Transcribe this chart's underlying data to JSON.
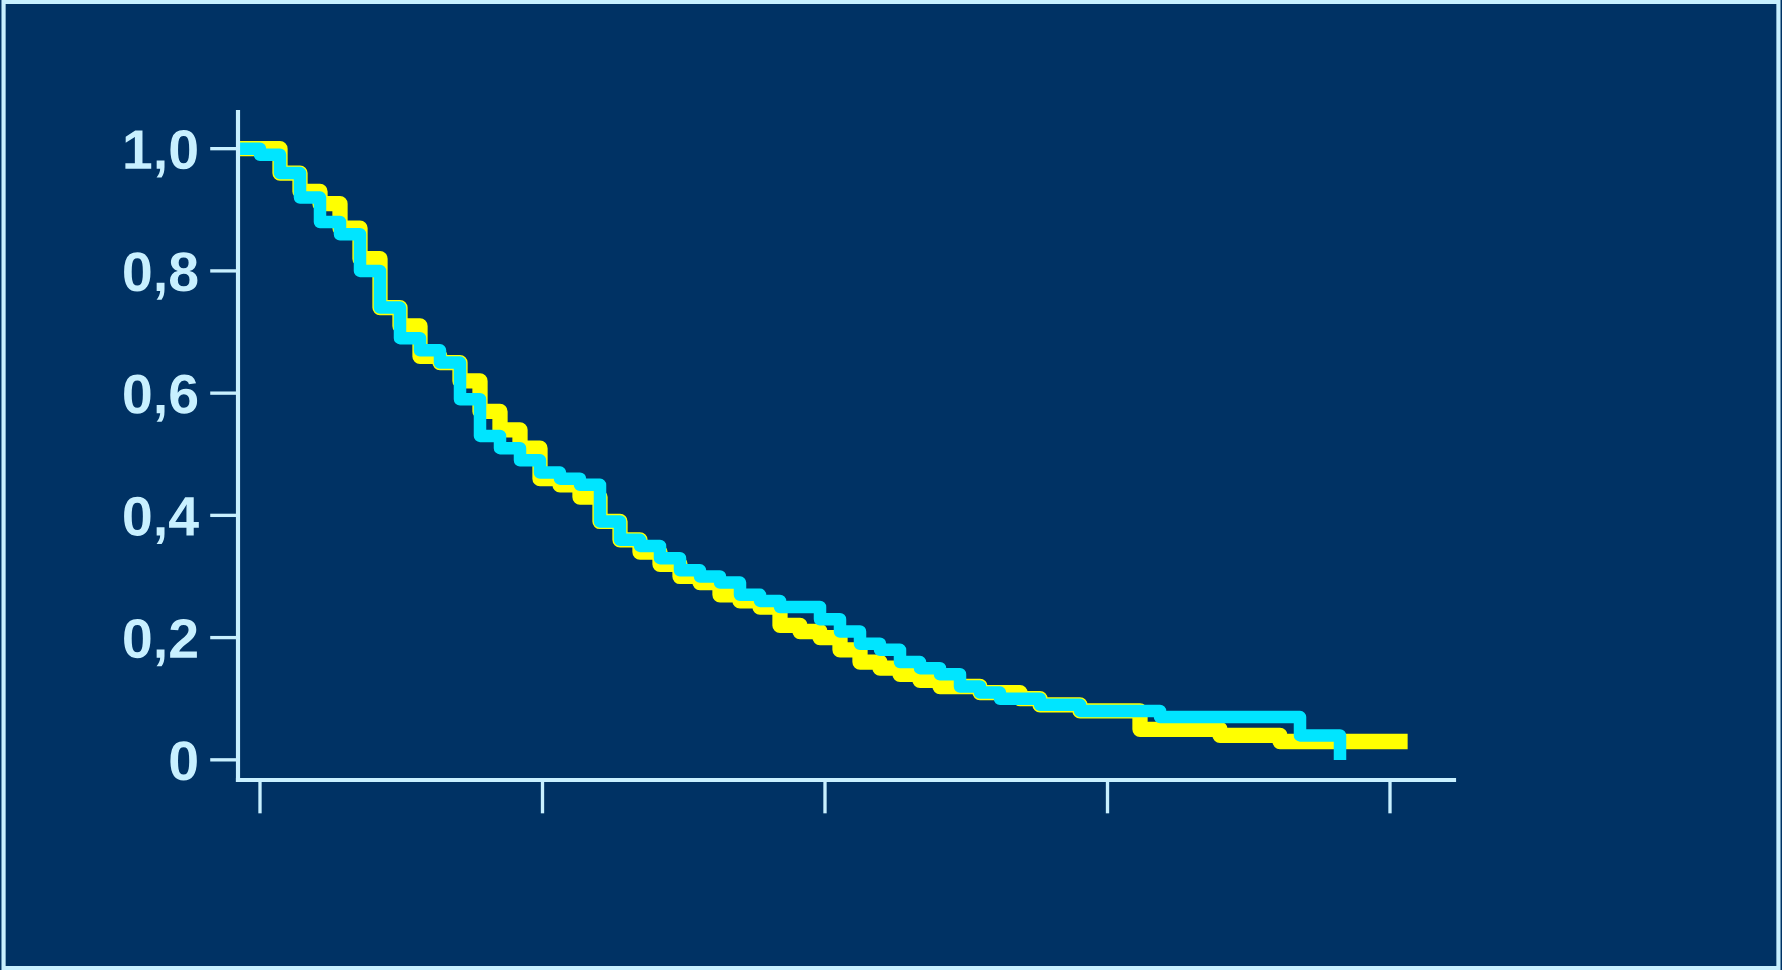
{
  "chart_data": {
    "type": "step",
    "categories": [
      null,
      null,
      null,
      null,
      null,
      null,
      null,
      null,
      null,
      null,
      null,
      null,
      null,
      null,
      null,
      null,
      null,
      null,
      null,
      null,
      null,
      null,
      null,
      null,
      null,
      null,
      null,
      null,
      null,
      null,
      null,
      null,
      null,
      null,
      null,
      null,
      null,
      null,
      null,
      null,
      null,
      null,
      null,
      null,
      null,
      null,
      null,
      null,
      null,
      null,
      null,
      null,
      null,
      null,
      null,
      null,
      null,
      null,
      null
    ],
    "ylim": [
      -0.033,
      1.06
    ],
    "yticks": [
      {
        "value": 0,
        "label": "0"
      },
      {
        "value": 0.2,
        "label": "0,2"
      },
      {
        "value": 0.4,
        "label": "0,4"
      },
      {
        "value": 0.6,
        "label": "0,6"
      },
      {
        "value": 0.8,
        "label": "0,8"
      },
      {
        "value": 1.0,
        "label": "1,0"
      }
    ],
    "grid": false,
    "legend": false,
    "marker": "none",
    "line_style": "solid",
    "series": [
      {
        "color": "#ffff00",
        "values": [
          1.0,
          1.0,
          0.96,
          0.93,
          0.91,
          0.87,
          0.82,
          0.74,
          0.71,
          0.66,
          0.65,
          0.62,
          0.57,
          0.54,
          0.51,
          0.46,
          0.45,
          0.43,
          0.39,
          0.36,
          0.34,
          0.32,
          0.3,
          0.29,
          0.27,
          0.26,
          0.25,
          0.22,
          0.21,
          0.2,
          0.18,
          0.16,
          0.15,
          0.14,
          0.13,
          0.12,
          0.12,
          0.11,
          0.11,
          0.1,
          0.09,
          0.09,
          0.08,
          0.08,
          0.08,
          0.05,
          0.05,
          0.05,
          0.05,
          0.04,
          0.04,
          0.04,
          0.03,
          0.03,
          0.03,
          0.03,
          0.03,
          0.03,
          0.03
        ]
      },
      {
        "color": "#00e5ff",
        "values": [
          1.0,
          0.99,
          0.96,
          0.92,
          0.88,
          0.86,
          0.8,
          0.74,
          0.69,
          0.67,
          0.65,
          0.59,
          0.53,
          0.51,
          0.49,
          0.47,
          0.46,
          0.45,
          0.39,
          0.36,
          0.35,
          0.33,
          0.31,
          0.3,
          0.29,
          0.27,
          0.26,
          0.25,
          0.25,
          0.23,
          0.21,
          0.19,
          0.18,
          0.16,
          0.15,
          0.14,
          0.12,
          0.11,
          0.1,
          0.1,
          0.09,
          0.09,
          0.08,
          0.08,
          0.08,
          0.08,
          0.07,
          0.07,
          0.07,
          0.07,
          0.07,
          0.07,
          0.07,
          0.04,
          0.04,
          0.01,
          null,
          null,
          null
        ]
      }
    ]
  }
}
